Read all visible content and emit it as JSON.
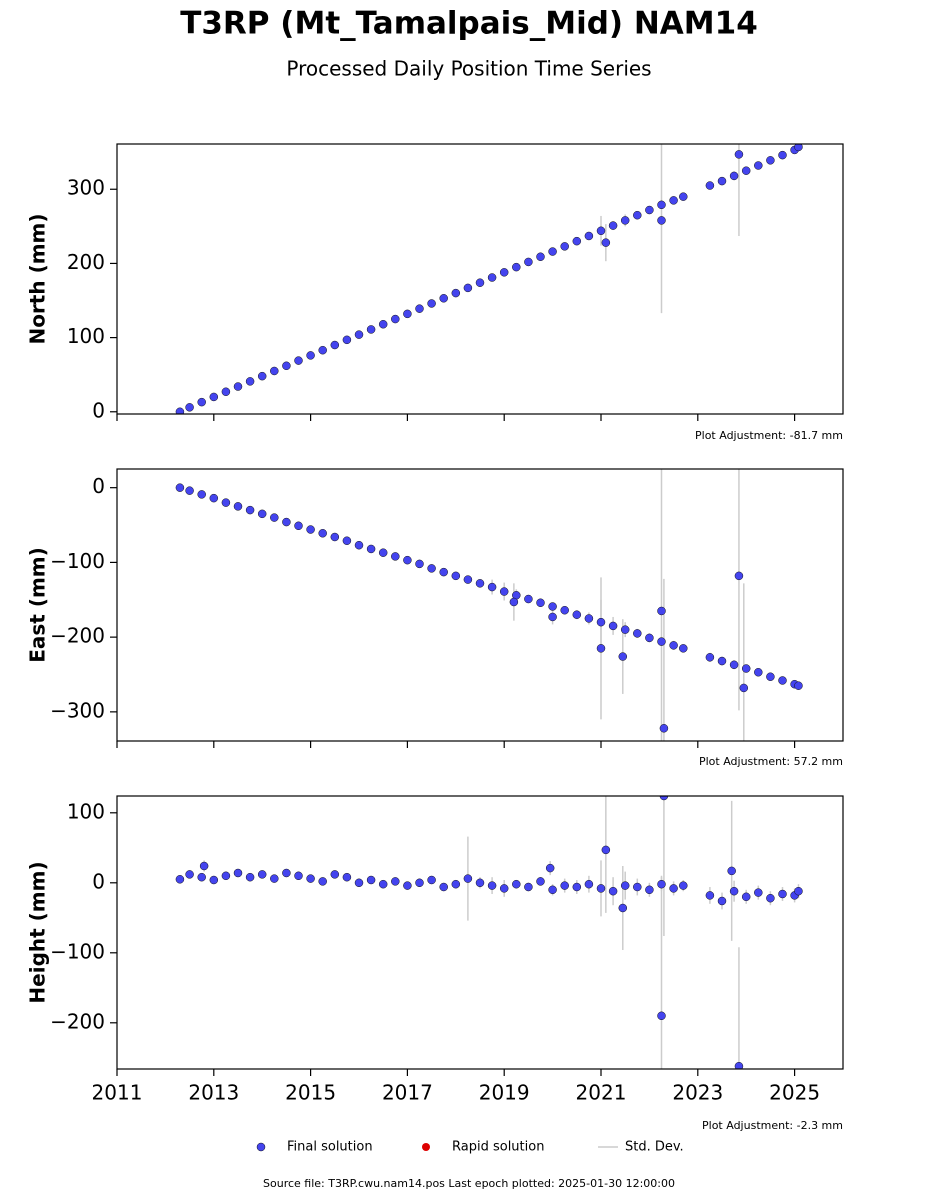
{
  "title": "T3RP (Mt_Tamalpais_Mid) NAM14",
  "subtitle": "Processed Daily Position Time Series",
  "legend": [
    {
      "name": "Final solution",
      "color": "#4444ee"
    },
    {
      "name": "Rapid solution",
      "color": "#dd0000"
    },
    {
      "name": "Std. Dev.",
      "color": "#cccccc"
    }
  ],
  "source": "Source file: T3RP.cwu.nam14.pos  Last epoch plotted: 2025-01-30 12:00:00",
  "chart_data": [
    {
      "type": "scatter",
      "ylabel": "North (mm)",
      "annotation": "Plot Adjustment: -81.7 mm",
      "xlim": [
        2011,
        2026
      ],
      "xticks": [
        2011,
        2013,
        2015,
        2017,
        2019,
        2021,
        2023,
        2025
      ],
      "ylim": [
        -3,
        361
      ],
      "yticks": [
        0,
        100,
        200,
        300
      ],
      "x": [
        2012.3,
        2012.5,
        2012.75,
        2013.0,
        2013.25,
        2013.5,
        2013.75,
        2014.0,
        2014.25,
        2014.5,
        2014.75,
        2015.0,
        2015.25,
        2015.5,
        2015.75,
        2016.0,
        2016.25,
        2016.5,
        2016.75,
        2017.0,
        2017.25,
        2017.5,
        2017.75,
        2018.0,
        2018.25,
        2018.5,
        2018.75,
        2019.0,
        2019.25,
        2019.5,
        2019.75,
        2020.0,
        2020.25,
        2020.5,
        2020.75,
        2021.0,
        2021.25,
        2021.5,
        2021.75,
        2022.0,
        2022.25,
        2022.5,
        2022.7,
        2023.25,
        2023.5,
        2023.75,
        2024.0,
        2024.25,
        2024.5,
        2024.75,
        2025.0,
        2025.08,
        2022.25,
        2023.85,
        2021.1
      ],
      "series": [
        {
          "name": "Final solution",
          "color": "#4444ee",
          "values": [
            0,
            6,
            13,
            20,
            27,
            34,
            41,
            48,
            55,
            62,
            69,
            76,
            83,
            90,
            97,
            104,
            111,
            118,
            125,
            132,
            139,
            146,
            153,
            160,
            167,
            174,
            181,
            188,
            195,
            202,
            209,
            216,
            223,
            230,
            237,
            244,
            251,
            258,
            265,
            272,
            279,
            285,
            290,
            305,
            311,
            318,
            325,
            332,
            339,
            346,
            353,
            357,
            258,
            347,
            228
          ],
          "errors": [
            3,
            3,
            3,
            3,
            3,
            3,
            3,
            3,
            3,
            3,
            3,
            3,
            3,
            3,
            3,
            3,
            3,
            3,
            3,
            3,
            3,
            3,
            3,
            3,
            3,
            3,
            3,
            4,
            4,
            3,
            3,
            3,
            3,
            3,
            4,
            20,
            6,
            8,
            5,
            5,
            5,
            5,
            4,
            5,
            5,
            6,
            4,
            4,
            4,
            4,
            4,
            4,
            125,
            110,
            25
          ]
        }
      ]
    },
    {
      "type": "scatter",
      "ylabel": "East (mm)",
      "annotation": "Plot Adjustment: 57.2 mm",
      "xlim": [
        2011,
        2026
      ],
      "xticks": [
        2011,
        2013,
        2015,
        2017,
        2019,
        2021,
        2023,
        2025
      ],
      "ylim": [
        -339,
        25
      ],
      "yticks": [
        0,
        -100,
        -200,
        -300
      ],
      "x": [
        2012.3,
        2012.5,
        2012.75,
        2013.0,
        2013.25,
        2013.5,
        2013.75,
        2014.0,
        2014.25,
        2014.5,
        2014.75,
        2015.0,
        2015.25,
        2015.5,
        2015.75,
        2016.0,
        2016.25,
        2016.5,
        2016.75,
        2017.0,
        2017.25,
        2017.5,
        2017.75,
        2018.0,
        2018.25,
        2018.5,
        2018.75,
        2019.0,
        2019.25,
        2019.5,
        2019.75,
        2020.0,
        2020.25,
        2020.5,
        2020.75,
        2021.0,
        2021.25,
        2021.5,
        2021.75,
        2022.0,
        2022.25,
        2022.5,
        2022.7,
        2023.25,
        2023.5,
        2023.75,
        2024.0,
        2024.25,
        2024.5,
        2024.75,
        2025.0,
        2025.08,
        2022.25,
        2022.3,
        2023.85,
        2023.95,
        2021.0,
        2020.0,
        2019.2,
        2021.45
      ],
      "series": [
        {
          "name": "Final solution",
          "color": "#4444ee",
          "values": [
            0,
            -4,
            -9,
            -14,
            -20,
            -25,
            -30,
            -35,
            -40,
            -46,
            -51,
            -56,
            -61,
            -66,
            -71,
            -77,
            -82,
            -87,
            -92,
            -97,
            -102,
            -108,
            -113,
            -118,
            -123,
            -128,
            -133,
            -139,
            -144,
            -149,
            -154,
            -159,
            -164,
            -170,
            -175,
            -180,
            -185,
            -190,
            -195,
            -201,
            -206,
            -211,
            -215,
            -227,
            -232,
            -237,
            -242,
            -247,
            -253,
            -258,
            -263,
            -265,
            -165,
            -322,
            -118,
            -268,
            -215,
            -173,
            -153,
            -226
          ],
          "errors": [
            3,
            3,
            3,
            3,
            3,
            3,
            3,
            3,
            3,
            3,
            3,
            3,
            3,
            3,
            3,
            3,
            3,
            3,
            3,
            3,
            3,
            3,
            3,
            3,
            3,
            3,
            10,
            12,
            8,
            4,
            4,
            4,
            4,
            6,
            8,
            30,
            12,
            10,
            6,
            6,
            6,
            6,
            5,
            6,
            6,
            6,
            5,
            5,
            5,
            5,
            5,
            5,
            190,
            200,
            180,
            140,
            95,
            10,
            25,
            50
          ]
        }
      ]
    },
    {
      "type": "scatter",
      "ylabel": "Height (mm)",
      "annotation": "Plot Adjustment: -2.3 mm",
      "xlim": [
        2011,
        2026
      ],
      "xticks": [
        2011,
        2013,
        2015,
        2017,
        2019,
        2021,
        2023,
        2025
      ],
      "ylim": [
        -266,
        124
      ],
      "yticks": [
        100,
        0,
        -100,
        -200
      ],
      "x": [
        2012.3,
        2012.5,
        2012.75,
        2013.0,
        2013.25,
        2013.5,
        2013.75,
        2014.0,
        2014.25,
        2014.5,
        2014.75,
        2015.0,
        2015.25,
        2015.5,
        2015.75,
        2016.0,
        2016.25,
        2016.5,
        2016.75,
        2017.0,
        2017.25,
        2017.5,
        2017.75,
        2018.0,
        2018.25,
        2018.5,
        2018.75,
        2019.0,
        2019.25,
        2019.5,
        2019.75,
        2020.0,
        2020.25,
        2020.5,
        2020.75,
        2021.0,
        2021.25,
        2021.5,
        2021.75,
        2022.0,
        2022.25,
        2022.5,
        2022.7,
        2023.25,
        2023.5,
        2023.75,
        2024.0,
        2024.25,
        2024.5,
        2024.75,
        2025.0,
        2025.08,
        2022.25,
        2022.3,
        2023.85,
        2021.1,
        2012.8,
        2019.95,
        2021.45,
        2023.7
      ],
      "series": [
        {
          "name": "Final solution",
          "color": "#4444ee",
          "values": [
            5,
            12,
            8,
            4,
            10,
            14,
            8,
            12,
            6,
            14,
            10,
            6,
            2,
            12,
            8,
            0,
            4,
            -2,
            2,
            -4,
            0,
            4,
            -6,
            -2,
            6,
            0,
            -4,
            -8,
            -2,
            -6,
            2,
            -10,
            -4,
            -6,
            -2,
            -8,
            -12,
            -4,
            -6,
            -10,
            -2,
            -8,
            -4,
            -18,
            -26,
            -12,
            -20,
            -14,
            -22,
            -16,
            -18,
            -12,
            -190,
            124,
            -262,
            47,
            24,
            21,
            -36,
            17
          ],
          "errors": [
            4,
            4,
            4,
            4,
            5,
            4,
            4,
            4,
            4,
            4,
            4,
            4,
            4,
            5,
            4,
            4,
            4,
            4,
            4,
            4,
            4,
            4,
            5,
            6,
            60,
            8,
            12,
            12,
            6,
            6,
            6,
            8,
            10,
            10,
            12,
            40,
            20,
            20,
            12,
            10,
            10,
            10,
            8,
            12,
            12,
            15,
            10,
            10,
            10,
            10,
            10,
            10,
            200,
            200,
            170,
            90,
            8,
            10,
            60,
            100
          ]
        }
      ]
    }
  ]
}
